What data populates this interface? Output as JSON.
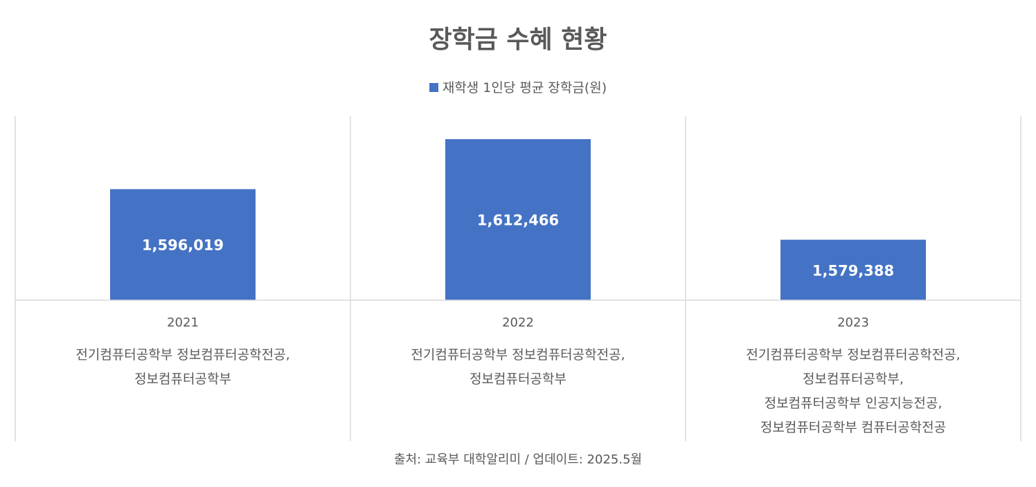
{
  "chart_data": {
    "type": "bar",
    "title": "장학금 수혜 현황",
    "categories": [
      "2021",
      "2022",
      "2023"
    ],
    "category_sublabels": [
      [
        "전기컴퓨터공학부 정보컴퓨터공학전공,",
        "정보컴퓨터공학부"
      ],
      [
        "전기컴퓨터공학부 정보컴퓨터공학전공,",
        "정보컴퓨터공학부"
      ],
      [
        "전기컴퓨터공학부 정보컴퓨터공학전공,",
        "정보컴퓨터공학부,",
        "정보컴퓨터공학부 인공지능전공,",
        "정보컴퓨터공학부 컴퓨터공학전공"
      ]
    ],
    "series": [
      {
        "name": "재학생 1인당 평균 장학금(원)",
        "values": [
          1596019,
          1612466,
          1579388
        ],
        "color": "#4472C4"
      }
    ],
    "data_labels": [
      "1,596,019",
      "1,612,466",
      "1,579,388"
    ],
    "ylim": [
      1559500,
      1620000
    ],
    "y_axis_visible": false,
    "grid": false,
    "legend_position": "top"
  },
  "source": "출처: 교육부 대학알리미 / 업데이트: 2025.5월"
}
